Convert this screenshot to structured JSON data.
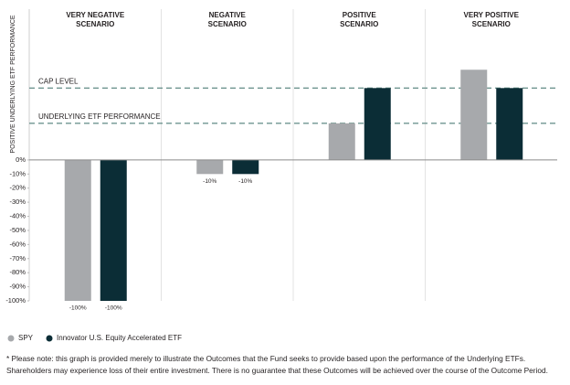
{
  "chart_data": {
    "type": "bar",
    "y_axis_label": "POSITIVE UNDERLYING ETF PERFORMANCE",
    "categories": [
      [
        "VERY NEGATIVE",
        "SCENARIO"
      ],
      [
        "NEGATIVE",
        "SCENARIO"
      ],
      [
        "POSITIVE",
        "SCENARIO"
      ],
      [
        "VERY POSITIVE",
        "SCENARIO"
      ]
    ],
    "series": [
      {
        "name": "SPY",
        "color": "#a7a9ac",
        "values": [
          -100,
          -10,
          26,
          64
        ],
        "value_labels": [
          "-100%",
          "-10%",
          null,
          null
        ]
      },
      {
        "name": "Innovator U.S. Equity Accelerated ETF",
        "color": "#0b2d36",
        "values": [
          -100,
          -10,
          51,
          51
        ],
        "value_labels": [
          "-100%",
          "-10%",
          null,
          null
        ]
      }
    ],
    "reference_lines": [
      {
        "label": "CAP LEVEL",
        "value": 51,
        "color": "#6f9590"
      },
      {
        "label": "UNDERLYING ETF PERFORMANCE",
        "value": 26,
        "color": "#6f9590"
      }
    ],
    "ylim": [
      -100,
      107
    ],
    "yticks": [
      {
        "value": 0,
        "label": "0%"
      },
      {
        "value": -10,
        "label": "-10%"
      },
      {
        "value": -20,
        "label": "-20%"
      },
      {
        "value": -30,
        "label": "-30%"
      },
      {
        "value": -40,
        "label": "-40%"
      },
      {
        "value": -50,
        "label": "-50%"
      },
      {
        "value": -60,
        "label": "-60%"
      },
      {
        "value": -70,
        "label": "-70%"
      },
      {
        "value": -80,
        "label": "-80%"
      },
      {
        "value": -90,
        "label": "-90%"
      },
      {
        "value": -100,
        "label": "-100%"
      }
    ],
    "footnote": [
      "* Please note: this graph is provided merely to illustrate the Outcomes that the Fund seeks to provide based upon the performance of the Underlying ETFs.",
      "Shareholders may experience loss of their entire investment. There is no guarantee that these Outcomes will be achieved over the course of the Outcome Period."
    ]
  }
}
